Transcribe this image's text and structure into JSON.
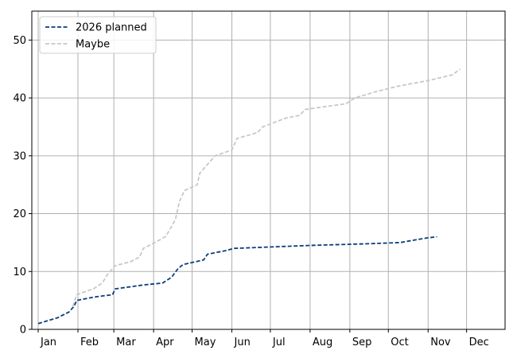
{
  "chart_data": {
    "type": "line",
    "title": "",
    "xlabel": "",
    "ylabel": "",
    "grid": true,
    "legend_position": "top-left",
    "x_ticks": [
      "Jan",
      "Feb",
      "Mar",
      "Apr",
      "May",
      "Jun",
      "Jul",
      "Aug",
      "Sep",
      "Oct",
      "Nov",
      "Dec"
    ],
    "y_ticks": [
      0,
      10,
      20,
      30,
      40,
      50
    ],
    "ylim": [
      0,
      55
    ],
    "xlim": [
      "2026-01-01",
      "2026-12-31"
    ],
    "series": [
      {
        "name": "2026 planned",
        "color": "#0b3d7a",
        "style": "dashed",
        "points": [
          {
            "x": "2026-01-01",
            "y": 1
          },
          {
            "x": "2026-01-16",
            "y": 2
          },
          {
            "x": "2026-01-25",
            "y": 3
          },
          {
            "x": "2026-01-29",
            "y": 4
          },
          {
            "x": "2026-01-31",
            "y": 5
          },
          {
            "x": "2026-02-14",
            "y": 5.6
          },
          {
            "x": "2026-02-28",
            "y": 6
          },
          {
            "x": "2026-03-02",
            "y": 7
          },
          {
            "x": "2026-03-25",
            "y": 7.7
          },
          {
            "x": "2026-04-08",
            "y": 8
          },
          {
            "x": "2026-04-15",
            "y": 9
          },
          {
            "x": "2026-04-20",
            "y": 10.5
          },
          {
            "x": "2026-04-24",
            "y": 11.2
          },
          {
            "x": "2026-05-10",
            "y": 12
          },
          {
            "x": "2026-05-13",
            "y": 13
          },
          {
            "x": "2026-05-27",
            "y": 13.6
          },
          {
            "x": "2026-06-03",
            "y": 14
          },
          {
            "x": "2026-08-01",
            "y": 14.5
          },
          {
            "x": "2026-09-15",
            "y": 14.8
          },
          {
            "x": "2026-10-10",
            "y": 15.0
          },
          {
            "x": "2026-10-31",
            "y": 15.8
          },
          {
            "x": "2026-11-08",
            "y": 16
          }
        ]
      },
      {
        "name": "Maybe",
        "color": "#c8c8c8",
        "style": "dashed",
        "points": [
          {
            "x": "2026-01-28",
            "y": 4
          },
          {
            "x": "2026-01-31",
            "y": 6
          },
          {
            "x": "2026-02-13",
            "y": 7
          },
          {
            "x": "2026-02-20",
            "y": 8
          },
          {
            "x": "2026-02-24",
            "y": 9.5
          },
          {
            "x": "2026-03-02",
            "y": 11
          },
          {
            "x": "2026-03-14",
            "y": 11.7
          },
          {
            "x": "2026-03-21",
            "y": 12.5
          },
          {
            "x": "2026-03-24",
            "y": 14
          },
          {
            "x": "2026-04-02",
            "y": 15
          },
          {
            "x": "2026-04-10",
            "y": 16
          },
          {
            "x": "2026-04-13",
            "y": 17
          },
          {
            "x": "2026-04-18",
            "y": 19
          },
          {
            "x": "2026-04-21",
            "y": 22
          },
          {
            "x": "2026-04-25",
            "y": 24
          },
          {
            "x": "2026-05-05",
            "y": 25
          },
          {
            "x": "2026-05-07",
            "y": 27
          },
          {
            "x": "2026-05-13",
            "y": 28.5
          },
          {
            "x": "2026-05-19",
            "y": 30
          },
          {
            "x": "2026-06-01",
            "y": 31
          },
          {
            "x": "2026-06-05",
            "y": 33
          },
          {
            "x": "2026-06-21",
            "y": 34
          },
          {
            "x": "2026-06-25",
            "y": 35
          },
          {
            "x": "2026-07-13",
            "y": 36.5
          },
          {
            "x": "2026-07-24",
            "y": 37
          },
          {
            "x": "2026-07-28",
            "y": 38
          },
          {
            "x": "2026-08-29",
            "y": 39
          },
          {
            "x": "2026-09-05",
            "y": 40
          },
          {
            "x": "2026-09-20",
            "y": 41
          },
          {
            "x": "2026-10-08",
            "y": 42
          },
          {
            "x": "2026-11-01",
            "y": 43
          },
          {
            "x": "2026-11-20",
            "y": 44
          },
          {
            "x": "2026-11-26",
            "y": 45
          }
        ]
      }
    ]
  }
}
